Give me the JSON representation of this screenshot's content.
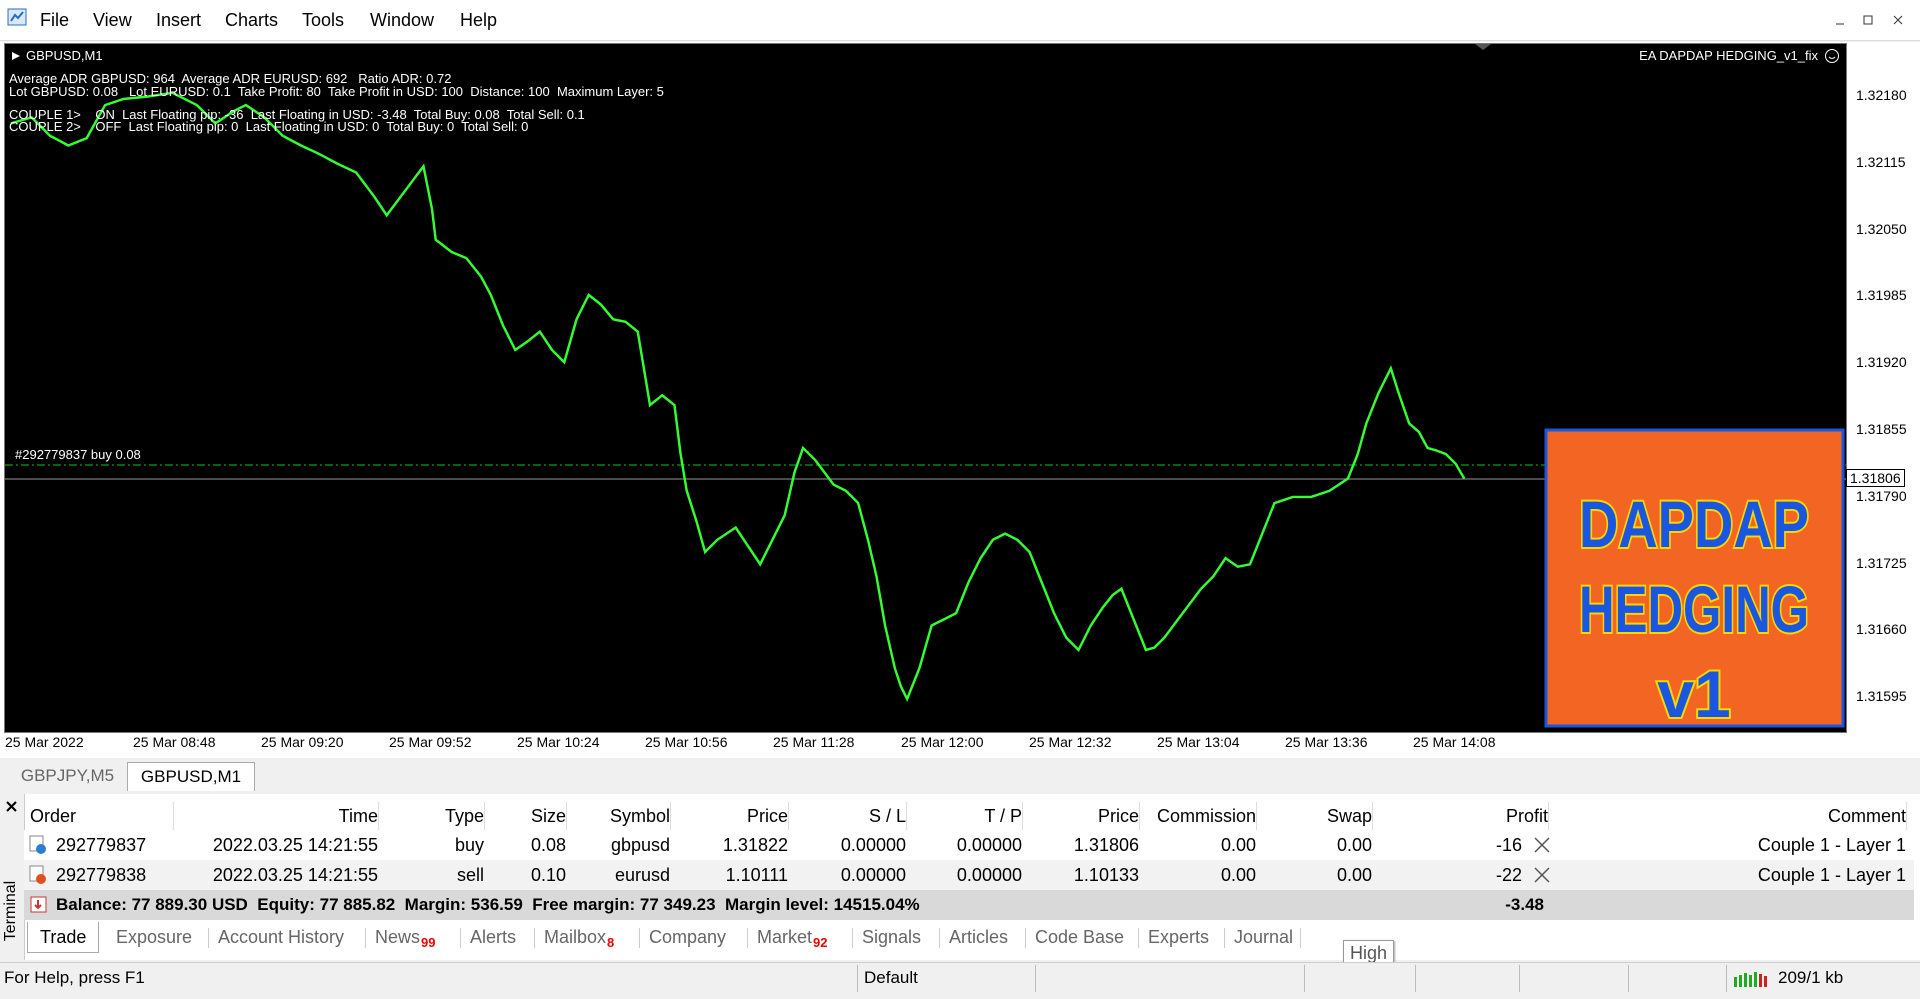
{
  "menu": [
    "File",
    "View",
    "Insert",
    "Charts",
    "Tools",
    "Window",
    "Help"
  ],
  "chart": {
    "symbol": "GBPUSD,M1",
    "ea_label": "EA DAPDAP HEDGING_v1_fix",
    "info_lines": [
      "Average ADR GBPUSD: 964  Average ADR EURUSD: 692   Ratio ADR: 0.72",
      "Lot GBPUSD: 0.08   Lot EURUSD: 0.1  Take Profit: 80  Take Profit in USD: 100  Distance: 100  Maximum Layer: 5",
      "COUPLE 1>    ON  Last Floating pip: -36  Last Floating in USD: -3.48  Total Buy: 0.08  Total Sell: 0.1",
      "COUPLE 2>    OFF  Last Floating pip: 0  Last Floating in USD: 0  Total Buy: 0  Total Sell: 0"
    ],
    "order_line": "#292779837 buy 0.08",
    "price_scale": [
      "1.32180",
      "1.32115",
      "1.32050",
      "1.31985",
      "1.31920",
      "1.31855",
      "1.31790",
      "1.31725",
      "1.31660",
      "1.31595"
    ],
    "current_price": "1.31806",
    "time_scale": [
      "25 Mar 2022",
      "25 Mar 08:48",
      "25 Mar 09:20",
      "25 Mar 09:52",
      "25 Mar 10:24",
      "25 Mar 10:56",
      "25 Mar 11:28",
      "25 Mar 12:00",
      "25 Mar 12:32",
      "25 Mar 13:04",
      "25 Mar 13:36",
      "25 Mar 14:08"
    ],
    "logo": [
      "DAPDAP",
      "HEDGING",
      "v1"
    ]
  },
  "chart_tabs": [
    "GBPJPY,M5",
    "GBPUSD,M1"
  ],
  "terminal": {
    "label": "Terminal",
    "columns": [
      "Order",
      "Time",
      "Type",
      "Size",
      "Symbol",
      "Price",
      "S / L",
      "T / P",
      "Price",
      "Commission",
      "Swap",
      "Profit",
      "Comment"
    ],
    "rows": [
      [
        "292779837",
        "2022.03.25 14:21:55",
        "buy",
        "0.08",
        "gbpusd",
        "1.31822",
        "0.00000",
        "0.00000",
        "1.31806",
        "0.00",
        "0.00",
        "-16",
        "Couple 1 - Layer 1"
      ],
      [
        "292779838",
        "2022.03.25 14:21:55",
        "sell",
        "0.10",
        "eurusd",
        "1.10111",
        "0.00000",
        "0.00000",
        "1.10133",
        "0.00",
        "0.00",
        "-22",
        "Couple 1 - Layer 1"
      ]
    ],
    "summary": {
      "text": "Balance: 77 889.30 USD  Equity: 77 885.82  Margin: 536.59  Free margin: 77 349.23  Margin level: 14515.04%",
      "profit": "-3.48"
    },
    "tabs": [
      {
        "label": "Trade"
      },
      {
        "label": "Exposure"
      },
      {
        "label": "Account History"
      },
      {
        "label": "News",
        "badge": "99"
      },
      {
        "label": "Alerts"
      },
      {
        "label": "Mailbox",
        "badge": "8"
      },
      {
        "label": "Company"
      },
      {
        "label": "Market",
        "badge": "92"
      },
      {
        "label": "Signals"
      },
      {
        "label": "Articles"
      },
      {
        "label": "Code Base"
      },
      {
        "label": "Experts"
      },
      {
        "label": "Journal"
      }
    ]
  },
  "tooltip": "High",
  "status": [
    "For Help, press F1",
    "Default",
    "209/1 kb"
  ]
}
